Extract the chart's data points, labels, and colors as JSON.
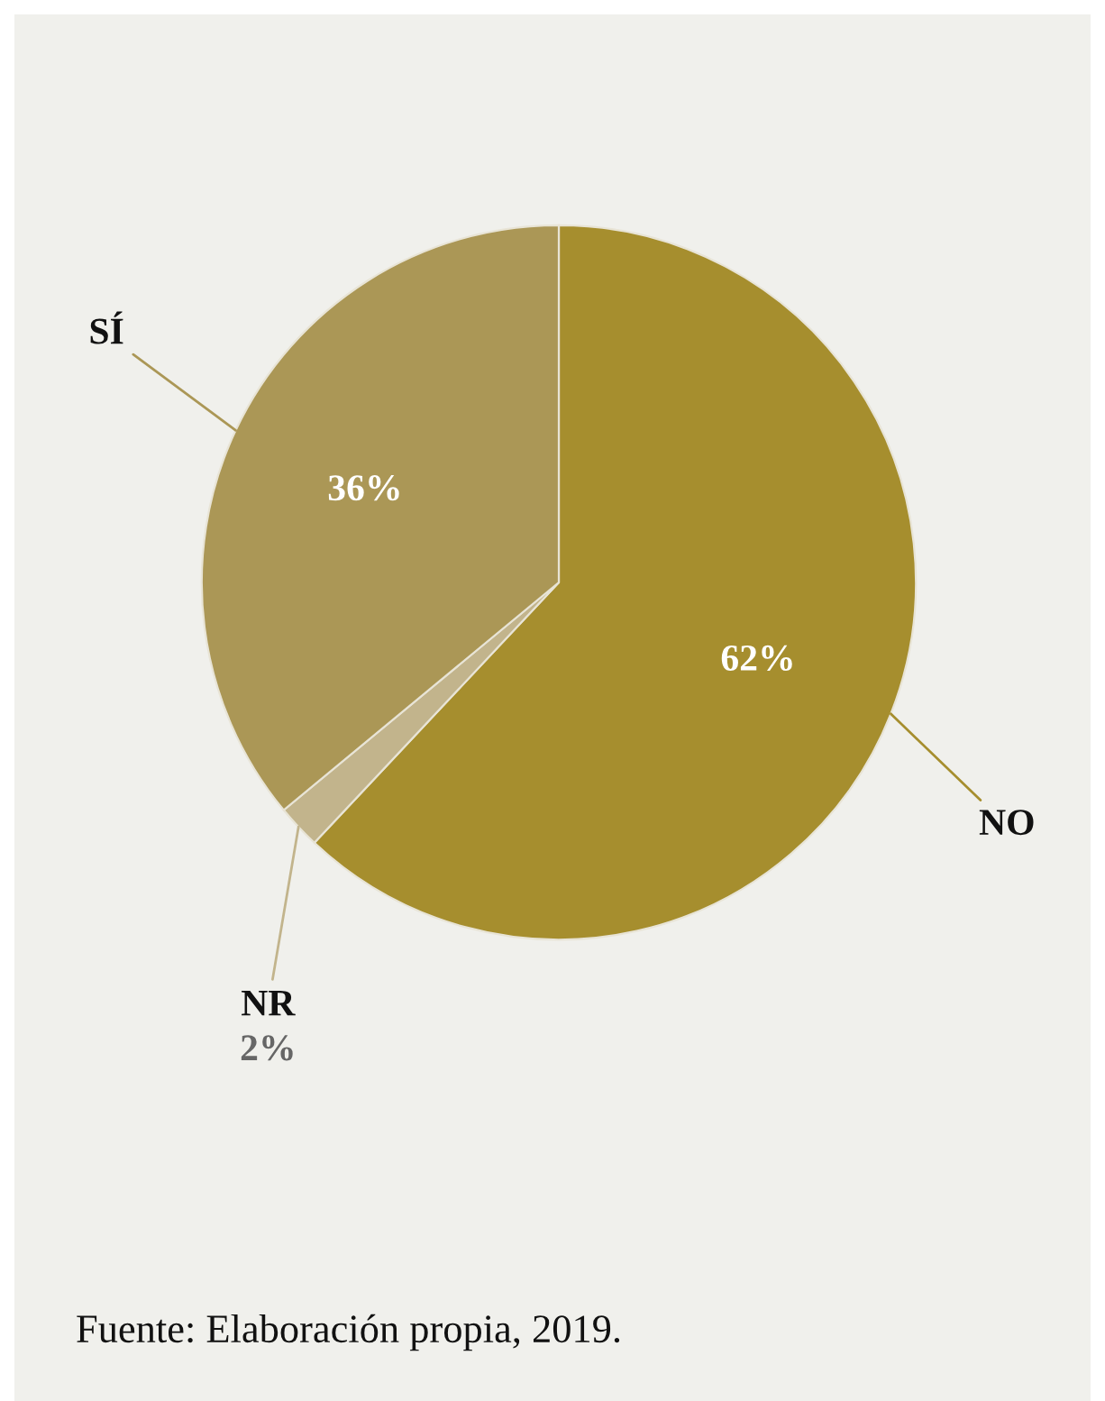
{
  "chart_data": {
    "type": "pie",
    "categories": [
      "NO",
      "NR",
      "SÍ"
    ],
    "values": [
      62,
      2,
      36
    ],
    "colors": [
      "#a68e2e",
      "#c2b48c",
      "#ab9756"
    ],
    "value_labels": [
      "62%",
      "2%",
      "36%"
    ],
    "legend": false,
    "annotations": [
      "Fuente: Elaboración propia, 2019."
    ]
  }
}
